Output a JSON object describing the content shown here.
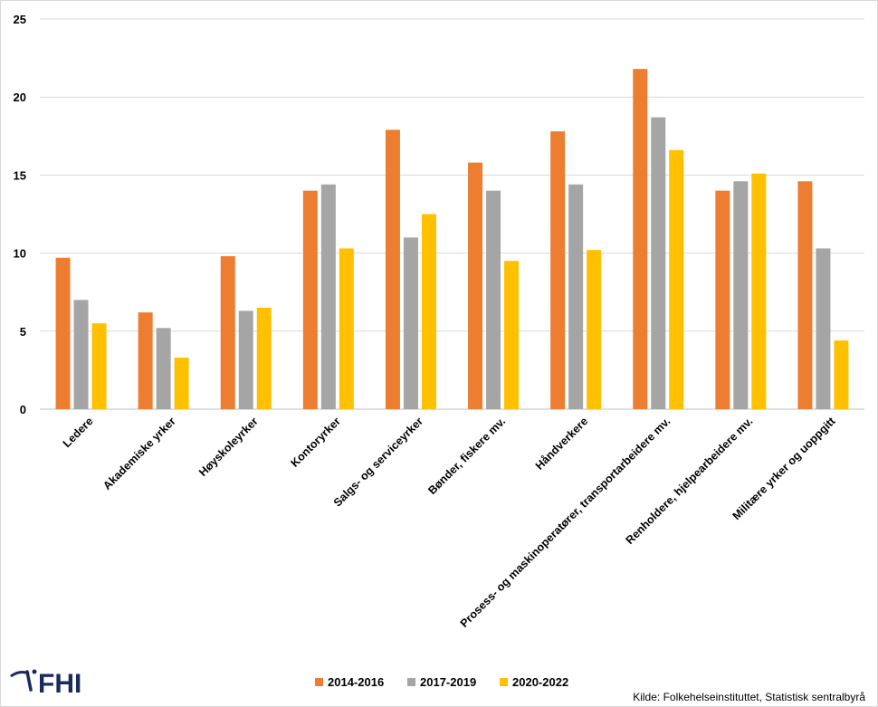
{
  "chart_data": {
    "type": "bar",
    "title": "",
    "xlabel": "",
    "ylabel": "",
    "ylim": [
      0,
      25
    ],
    "yticks": [
      0,
      5,
      10,
      15,
      20,
      25
    ],
    "grid": true,
    "legend_placement": "bottom",
    "categories": [
      "Ledere",
      "Akademiske yrker",
      "Høyskoleyrker",
      "Kontoryrker",
      "Salgs- og serviceyrker",
      "Bønder, fiskere mv.",
      "Håndverkere",
      "Prosess- og maskinoperatører, transportarbeidere mv.",
      "Renholdere, hjelpearbeidere mv.",
      "Militære yrker og uoppgitt"
    ],
    "series": [
      {
        "name": "2014-2016",
        "color": "#ED7D31",
        "values": [
          9.7,
          6.2,
          9.8,
          14.0,
          17.9,
          15.8,
          17.8,
          21.8,
          14.0,
          14.6
        ]
      },
      {
        "name": "2017-2019",
        "color": "#A5A5A5",
        "values": [
          7.0,
          5.2,
          6.3,
          14.4,
          11.0,
          14.0,
          14.4,
          18.7,
          14.6,
          10.3
        ]
      },
      {
        "name": "2020-2022",
        "color": "#FFC000",
        "values": [
          5.5,
          3.3,
          6.5,
          10.3,
          12.5,
          9.5,
          10.2,
          16.6,
          15.1,
          4.4
        ]
      }
    ]
  },
  "logo": {
    "text": "FHI",
    "icon": "fhi-logo-icon"
  },
  "source": "Kilde: Folkehelseinstituttet, Statistisk sentralbyrå"
}
